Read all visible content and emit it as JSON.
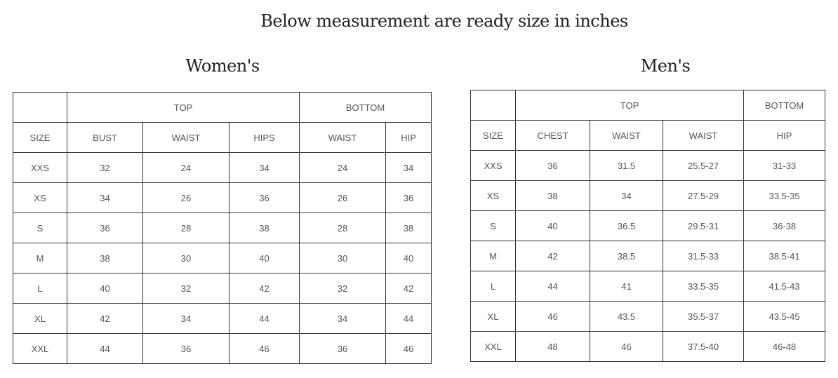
{
  "title": "Below measurement are ready size in inches",
  "women": {
    "heading": "Women's",
    "group_top": "TOP",
    "group_bottom": "BOTTOM",
    "columns": [
      "SIZE",
      "BUST",
      "WAIST",
      "HIPS",
      "WAIST",
      "HIP"
    ],
    "rows": [
      [
        "XXS",
        "32",
        "24",
        "34",
        "24",
        "34"
      ],
      [
        "XS",
        "34",
        "26",
        "36",
        "26",
        "36"
      ],
      [
        "S",
        "36",
        "28",
        "38",
        "28",
        "38"
      ],
      [
        "M",
        "38",
        "30",
        "40",
        "30",
        "40"
      ],
      [
        "L",
        "40",
        "32",
        "42",
        "32",
        "42"
      ],
      [
        "XL",
        "42",
        "34",
        "44",
        "34",
        "44"
      ],
      [
        "XXL",
        "44",
        "36",
        "46",
        "36",
        "46"
      ]
    ]
  },
  "men": {
    "heading": "Men's",
    "group_top": "TOP",
    "group_bottom": "BOTTOM",
    "columns": [
      "SIZE",
      "CHEST",
      "WAIST",
      "WAIST",
      "HIP"
    ],
    "rows": [
      [
        "XXS",
        "36",
        "31.5",
        "25.5-27",
        "31-33"
      ],
      [
        "XS",
        "38",
        "34",
        "27.5-29",
        "33.5-35"
      ],
      [
        "S",
        "40",
        "36.5",
        "29.5-31",
        "36-38"
      ],
      [
        "M",
        "42",
        "38.5",
        "31.5-33",
        "38.5-41"
      ],
      [
        "L",
        "44",
        "41",
        "33.5-35",
        "41.5-43"
      ],
      [
        "XL",
        "46",
        "43.5",
        "35.5-37",
        "43.5-45"
      ],
      [
        "XXL",
        "48",
        "46",
        "37.5-40",
        "46-48"
      ]
    ]
  }
}
